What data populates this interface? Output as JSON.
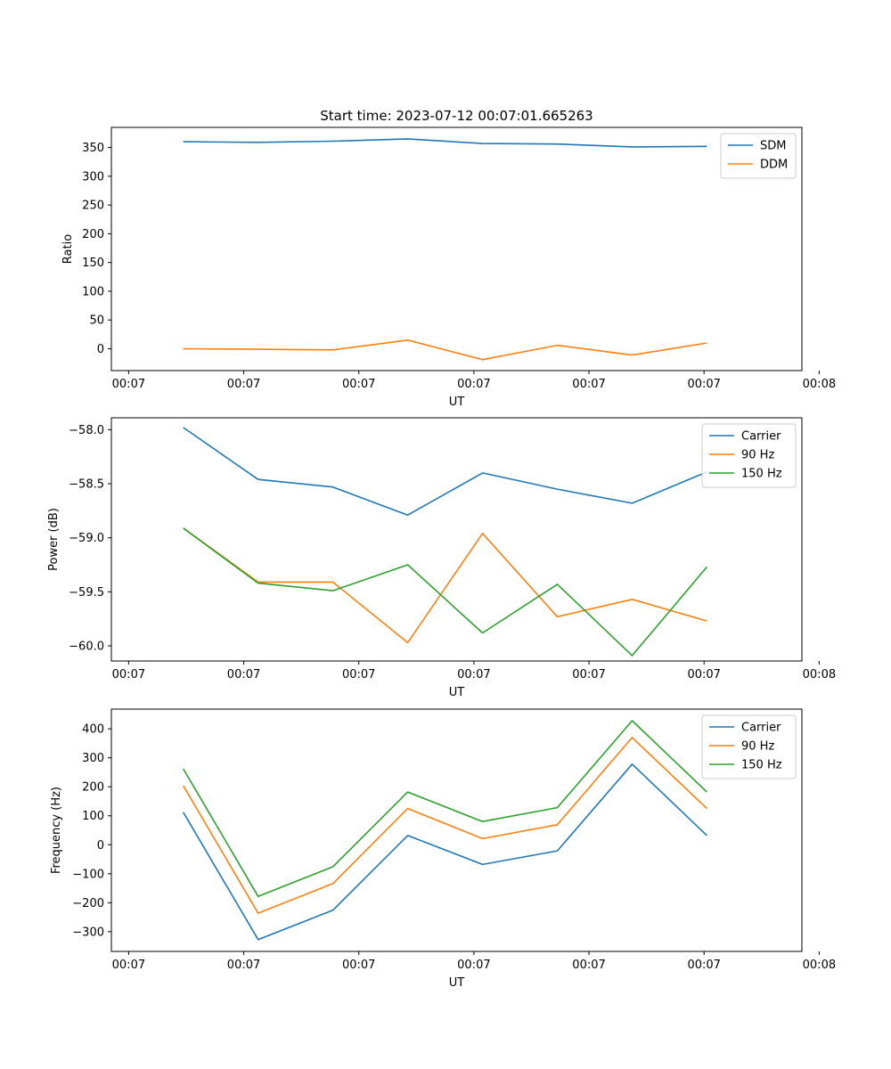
{
  "chart_data": [
    {
      "type": "line",
      "title": "Start time: 2023-07-12 00:07:01.665263",
      "xlabel": "UT",
      "ylabel": "Ratio",
      "xlim": [
        0,
        12
      ],
      "x_ticks": [
        0.3,
        2.3,
        4.3,
        6.3,
        8.3,
        10.3,
        12.3
      ],
      "x_tick_labels": [
        "00:07",
        "00:07",
        "00:07",
        "00:07",
        "00:07",
        "00:07",
        "00:08"
      ],
      "ylim": [
        -38,
        385
      ],
      "y_ticks": [
        0,
        50,
        100,
        150,
        200,
        250,
        300,
        350
      ],
      "y_tick_labels": [
        "0",
        "50",
        "100",
        "150",
        "200",
        "250",
        "300",
        "350"
      ],
      "x": [
        1.25,
        2.55,
        3.85,
        5.15,
        6.45,
        7.75,
        9.05,
        10.35
      ],
      "legend_position": "top-right",
      "series": [
        {
          "name": "SDM",
          "color": "#1f77b4",
          "values": [
            360,
            359,
            361,
            365,
            357,
            356,
            351,
            352
          ]
        },
        {
          "name": "DDM",
          "color": "#ff7f0e",
          "values": [
            0,
            -1,
            -2,
            15,
            -19,
            6,
            -11,
            10
          ]
        }
      ]
    },
    {
      "type": "line",
      "title": "",
      "xlabel": "UT",
      "ylabel": "Power (dB)",
      "xlim": [
        0,
        12
      ],
      "x_ticks": [
        0.3,
        2.3,
        4.3,
        6.3,
        8.3,
        10.3,
        12.3
      ],
      "x_tick_labels": [
        "00:07",
        "00:07",
        "00:07",
        "00:07",
        "00:07",
        "00:07",
        "00:08"
      ],
      "ylim": [
        -60.14,
        -57.89
      ],
      "y_ticks": [
        -58.0,
        -58.5,
        -59.0,
        -59.5,
        -60.0
      ],
      "y_tick_labels": [
        "−58.0",
        "−58.5",
        "−59.0",
        "−59.5",
        "−60.0"
      ],
      "x": [
        1.25,
        2.55,
        3.85,
        5.15,
        6.45,
        7.75,
        9.05,
        10.35
      ],
      "legend_position": "top-right",
      "series": [
        {
          "name": "Carrier",
          "color": "#1f77b4",
          "values": [
            -57.98,
            -58.46,
            -58.53,
            -58.79,
            -58.4,
            -58.55,
            -58.68,
            -58.39
          ]
        },
        {
          "name": "90 Hz",
          "color": "#ff7f0e",
          "values": [
            -58.91,
            -59.41,
            -59.41,
            -59.97,
            -58.96,
            -59.73,
            -59.57,
            -59.77
          ]
        },
        {
          "name": "150 Hz",
          "color": "#2ca02c",
          "values": [
            -58.91,
            -59.42,
            -59.49,
            -59.25,
            -59.88,
            -59.43,
            -60.09,
            -59.27
          ]
        }
      ]
    },
    {
      "type": "line",
      "title": "",
      "xlabel": "UT",
      "ylabel": "Frequency (Hz)",
      "xlim": [
        0,
        12
      ],
      "x_ticks": [
        0.3,
        2.3,
        4.3,
        6.3,
        8.3,
        10.3,
        12.3
      ],
      "x_tick_labels": [
        "00:07",
        "00:07",
        "00:07",
        "00:07",
        "00:07",
        "00:07",
        "00:08"
      ],
      "ylim": [
        -368,
        468
      ],
      "y_ticks": [
        400,
        300,
        200,
        100,
        0,
        -100,
        -200,
        -300
      ],
      "y_tick_labels": [
        "400",
        "300",
        "200",
        "100",
        "0",
        "−100",
        "−200",
        "−300"
      ],
      "x": [
        1.25,
        2.55,
        3.85,
        5.15,
        6.45,
        7.75,
        9.05,
        10.35
      ],
      "legend_position": "top-right",
      "series": [
        {
          "name": "Carrier",
          "color": "#1f77b4",
          "values": [
            112,
            -327,
            -226,
            32,
            -68,
            -21,
            278,
            32
          ]
        },
        {
          "name": "90 Hz",
          "color": "#ff7f0e",
          "values": [
            204,
            -236,
            -134,
            125,
            21,
            69,
            370,
            125
          ]
        },
        {
          "name": "150 Hz",
          "color": "#2ca02c",
          "values": [
            262,
            -178,
            -76,
            182,
            80,
            128,
            428,
            182
          ]
        }
      ]
    }
  ]
}
